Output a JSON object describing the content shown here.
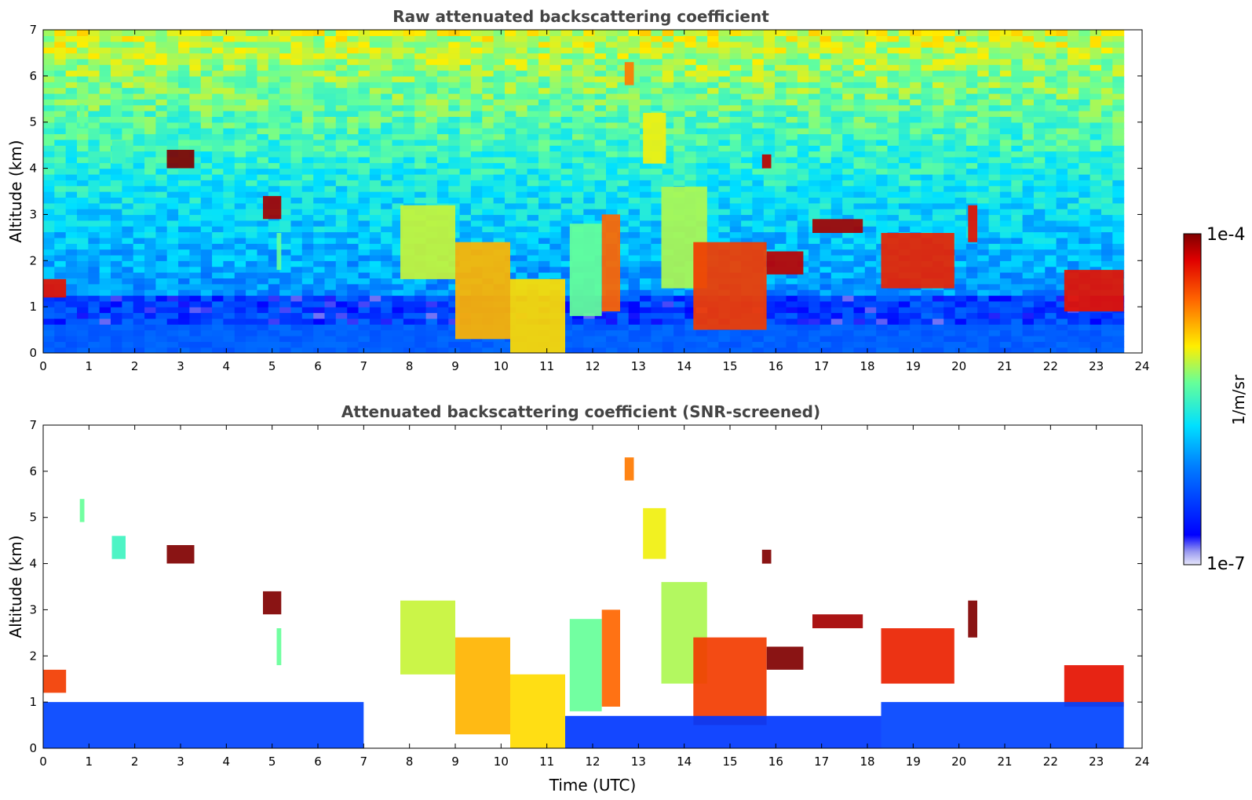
{
  "chart_data": [
    {
      "type": "heatmap",
      "title": "Raw attenuated backscattering coefficient",
      "xlabel": "",
      "ylabel": "Altitude (km)",
      "xlim": [
        0,
        24
      ],
      "ylim": [
        0,
        7
      ],
      "x_ticks": [
        "0",
        "1",
        "2",
        "3",
        "4",
        "5",
        "6",
        "7",
        "8",
        "9",
        "10",
        "11",
        "12",
        "13",
        "14",
        "15",
        "16",
        "17",
        "18",
        "19",
        "20",
        "21",
        "22",
        "23",
        "24"
      ],
      "y_ticks": [
        "0",
        "1",
        "2",
        "3",
        "4",
        "5",
        "6",
        "7"
      ],
      "data_end_hour": 23.6,
      "noise_floor": true,
      "features": [
        {
          "t0": 7.8,
          "t1": 9.0,
          "z0": 1.6,
          "z1": 3.2,
          "v": 0.62
        },
        {
          "t0": 9.0,
          "t1": 10.2,
          "z0": 0.3,
          "z1": 2.4,
          "v": 0.72
        },
        {
          "t0": 10.2,
          "t1": 11.4,
          "z0": 0.0,
          "z1": 1.6,
          "v": 0.68
        },
        {
          "t0": 11.5,
          "t1": 12.2,
          "z0": 0.8,
          "z1": 2.8,
          "v": 0.55
        },
        {
          "t0": 12.2,
          "t1": 12.6,
          "z0": 0.9,
          "z1": 3.0,
          "v": 0.8
        },
        {
          "t0": 13.5,
          "t1": 14.5,
          "z0": 1.4,
          "z1": 3.6,
          "v": 0.6
        },
        {
          "t0": 14.2,
          "t1": 15.8,
          "z0": 0.5,
          "z1": 2.4,
          "v": 0.85
        },
        {
          "t0": 15.8,
          "t1": 16.6,
          "z0": 1.7,
          "z1": 2.2,
          "v": 0.95
        },
        {
          "t0": 16.8,
          "t1": 17.9,
          "z0": 2.6,
          "z1": 2.9,
          "v": 0.97
        },
        {
          "t0": 18.3,
          "t1": 19.9,
          "z0": 1.4,
          "z1": 2.6,
          "v": 0.88
        },
        {
          "t0": 22.3,
          "t1": 23.6,
          "z0": 0.9,
          "z1": 1.8,
          "v": 0.9
        },
        {
          "t0": 0.0,
          "t1": 0.5,
          "z0": 1.2,
          "z1": 1.6,
          "v": 0.9
        },
        {
          "t0": 2.7,
          "t1": 3.3,
          "z0": 4.0,
          "z1": 4.4,
          "v": 1.0
        },
        {
          "t0": 4.8,
          "t1": 5.2,
          "z0": 2.9,
          "z1": 3.4,
          "v": 0.97
        },
        {
          "t0": 5.1,
          "t1": 5.2,
          "z0": 1.8,
          "z1": 2.6,
          "v": 0.55
        },
        {
          "t0": 0.8,
          "t1": 0.9,
          "z0": 4.9,
          "z1": 5.4,
          "v": 0.55
        },
        {
          "t0": 1.5,
          "t1": 1.8,
          "z0": 4.1,
          "z1": 4.6,
          "v": 0.5
        },
        {
          "t0": 12.7,
          "t1": 12.9,
          "z0": 5.8,
          "z1": 6.3,
          "v": 0.78
        },
        {
          "t0": 13.1,
          "t1": 13.6,
          "z0": 4.1,
          "z1": 5.2,
          "v": 0.65
        },
        {
          "t0": 15.7,
          "t1": 15.9,
          "z0": 4.0,
          "z1": 4.3,
          "v": 0.95
        },
        {
          "t0": 20.2,
          "t1": 20.4,
          "z0": 2.4,
          "z1": 3.2,
          "v": 0.9
        }
      ]
    },
    {
      "type": "heatmap",
      "title": "Attenuated backscattering coefficient (SNR-screened)",
      "xlabel": "Time (UTC)",
      "ylabel": "Altitude (km)",
      "xlim": [
        0,
        24
      ],
      "ylim": [
        0,
        7
      ],
      "x_ticks": [
        "0",
        "1",
        "2",
        "3",
        "4",
        "5",
        "6",
        "7",
        "8",
        "9",
        "10",
        "11",
        "12",
        "13",
        "14",
        "15",
        "16",
        "17",
        "18",
        "19",
        "20",
        "21",
        "22",
        "23",
        "24"
      ],
      "y_ticks": [
        "0",
        "1",
        "2",
        "3",
        "4",
        "5",
        "6",
        "7"
      ],
      "data_end_hour": 23.6,
      "noise_floor": false,
      "features": [
        {
          "t0": 7.8,
          "t1": 9.0,
          "z0": 1.6,
          "z1": 3.2,
          "v": 0.62
        },
        {
          "t0": 9.0,
          "t1": 10.2,
          "z0": 0.3,
          "z1": 2.4,
          "v": 0.72
        },
        {
          "t0": 10.2,
          "t1": 11.4,
          "z0": 0.0,
          "z1": 1.6,
          "v": 0.68
        },
        {
          "t0": 11.5,
          "t1": 12.2,
          "z0": 0.8,
          "z1": 2.8,
          "v": 0.55
        },
        {
          "t0": 12.2,
          "t1": 12.6,
          "z0": 0.9,
          "z1": 3.0,
          "v": 0.8
        },
        {
          "t0": 13.5,
          "t1": 14.5,
          "z0": 1.4,
          "z1": 3.6,
          "v": 0.6
        },
        {
          "t0": 14.2,
          "t1": 15.8,
          "z0": 0.5,
          "z1": 2.4,
          "v": 0.85
        },
        {
          "t0": 15.8,
          "t1": 16.6,
          "z0": 1.7,
          "z1": 2.2,
          "v": 1.0
        },
        {
          "t0": 16.8,
          "t1": 17.9,
          "z0": 2.6,
          "z1": 2.9,
          "v": 0.97
        },
        {
          "t0": 18.3,
          "t1": 19.9,
          "z0": 1.4,
          "z1": 2.6,
          "v": 0.88
        },
        {
          "t0": 22.3,
          "t1": 23.6,
          "z0": 0.9,
          "z1": 1.8,
          "v": 0.9
        },
        {
          "t0": 0.0,
          "t1": 0.5,
          "z0": 1.2,
          "z1": 1.7,
          "v": 0.85
        },
        {
          "t0": 2.7,
          "t1": 3.3,
          "z0": 4.0,
          "z1": 4.4,
          "v": 1.0
        },
        {
          "t0": 4.8,
          "t1": 5.2,
          "z0": 2.9,
          "z1": 3.4,
          "v": 1.0
        },
        {
          "t0": 5.1,
          "t1": 5.2,
          "z0": 1.8,
          "z1": 2.6,
          "v": 0.55
        },
        {
          "t0": 0.8,
          "t1": 0.9,
          "z0": 4.9,
          "z1": 5.4,
          "v": 0.55
        },
        {
          "t0": 1.5,
          "t1": 1.8,
          "z0": 4.1,
          "z1": 4.6,
          "v": 0.5
        },
        {
          "t0": 12.7,
          "t1": 12.9,
          "z0": 5.8,
          "z1": 6.3,
          "v": 0.78
        },
        {
          "t0": 13.1,
          "t1": 13.6,
          "z0": 4.1,
          "z1": 5.2,
          "v": 0.65
        },
        {
          "t0": 15.7,
          "t1": 15.9,
          "z0": 4.0,
          "z1": 4.3,
          "v": 1.0
        },
        {
          "t0": 20.2,
          "t1": 20.4,
          "z0": 2.4,
          "z1": 3.2,
          "v": 1.0
        },
        {
          "t0": 0.0,
          "t1": 7.0,
          "z0": 0.0,
          "z1": 1.0,
          "v": 0.2
        },
        {
          "t0": 11.4,
          "t1": 18.3,
          "z0": 0.0,
          "z1": 0.7,
          "v": 0.18
        },
        {
          "t0": 18.3,
          "t1": 23.6,
          "z0": 0.0,
          "z1": 1.0,
          "v": 0.2
        }
      ]
    }
  ],
  "colorbar": {
    "min_label": "1e-7",
    "max_label": "1e-4",
    "unit_label": "1/m/sr",
    "scale": "log"
  }
}
